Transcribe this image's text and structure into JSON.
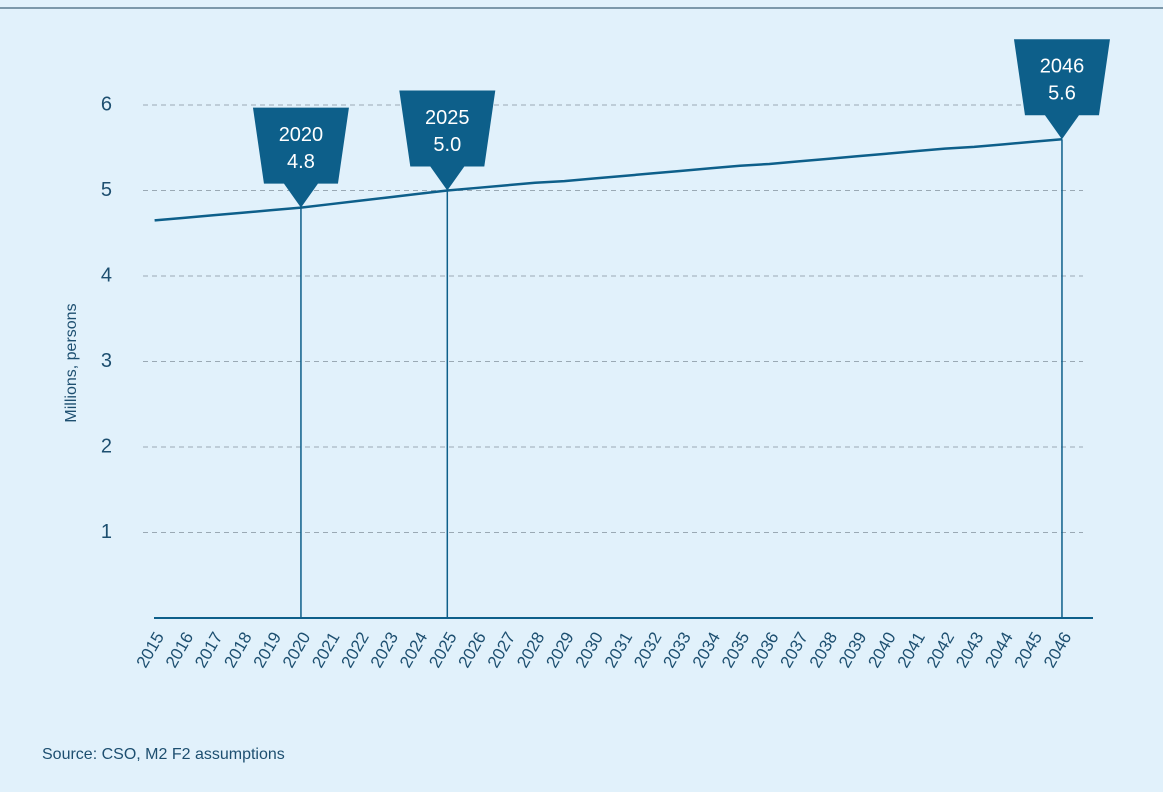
{
  "chart_data": {
    "type": "line",
    "y_axis_label": "Millions, persons",
    "source": "Source: CSO, M2 F2 assumptions",
    "categories": [
      "2015",
      "2016",
      "2017",
      "2018",
      "2019",
      "2020",
      "2021",
      "2022",
      "2023",
      "2024",
      "2025",
      "2026",
      "2027",
      "2028",
      "2029",
      "2030",
      "2031",
      "2032",
      "2033",
      "2034",
      "2035",
      "2036",
      "2037",
      "2038",
      "2039",
      "2040",
      "2041",
      "2042",
      "2043",
      "2044",
      "2045",
      "2046"
    ],
    "values": [
      4.65,
      4.68,
      4.71,
      4.74,
      4.77,
      4.8,
      4.84,
      4.88,
      4.92,
      4.96,
      5.0,
      5.03,
      5.06,
      5.09,
      5.11,
      5.14,
      5.17,
      5.2,
      5.23,
      5.26,
      5.29,
      5.31,
      5.34,
      5.37,
      5.4,
      5.43,
      5.46,
      5.49,
      5.51,
      5.54,
      5.57,
      5.6
    ],
    "color": "#0d5f8a",
    "ylim": [
      0,
      6
    ],
    "yticks": [
      1,
      2,
      3,
      4,
      5,
      6
    ],
    "grid": true,
    "annotations": [
      {
        "category": "2020",
        "value": 4.8,
        "label": "4.8"
      },
      {
        "category": "2025",
        "value": 5.0,
        "label": "5.0"
      },
      {
        "category": "2046",
        "value": 5.6,
        "label": "5.6"
      }
    ]
  }
}
